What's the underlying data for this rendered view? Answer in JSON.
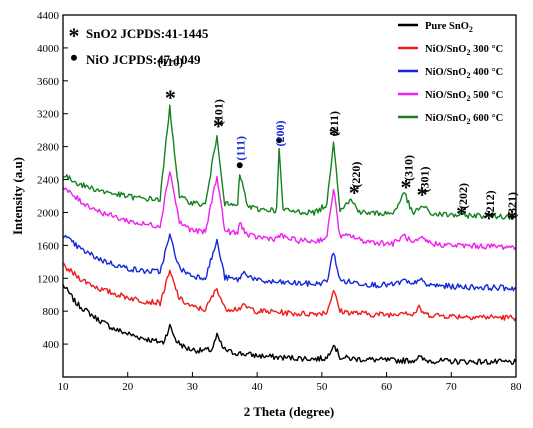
{
  "chart_data": {
    "type": "line",
    "title": "",
    "xlabel": "2 Theta (degree)",
    "ylabel": "Intensity (a.u)",
    "xlim": [
      10,
      80
    ],
    "ylim": [
      0,
      4400
    ],
    "xticks": [
      "10",
      "20",
      "30",
      "40",
      "50",
      "60",
      "70",
      "80"
    ],
    "yticks": [
      "400",
      "800",
      "1200",
      "1600",
      "2000",
      "2400",
      "2800",
      "3200",
      "3600",
      "4000",
      "4400"
    ],
    "legend_position": "top-right",
    "series": [
      {
        "name": "Pure SnO2",
        "color": "#000000",
        "points": [
          [
            10,
            1120
          ],
          [
            12,
            900
          ],
          [
            15,
            720
          ],
          [
            18,
            580
          ],
          [
            21,
            500
          ],
          [
            24,
            440
          ],
          [
            25.5,
            420
          ],
          [
            26.5,
            620
          ],
          [
            27.5,
            440
          ],
          [
            29,
            350
          ],
          [
            31,
            320
          ],
          [
            33,
            330
          ],
          [
            33.8,
            500
          ],
          [
            34.8,
            340
          ],
          [
            36,
            300
          ],
          [
            38,
            280
          ],
          [
            40,
            260
          ],
          [
            43,
            240
          ],
          [
            46,
            230
          ],
          [
            49,
            220
          ],
          [
            50.8,
            230
          ],
          [
            51.8,
            410
          ],
          [
            52.8,
            240
          ],
          [
            55,
            220
          ],
          [
            58,
            210
          ],
          [
            61,
            200
          ],
          [
            64,
            200
          ],
          [
            65,
            240
          ],
          [
            66,
            200
          ],
          [
            70,
            190
          ],
          [
            75,
            185
          ],
          [
            80,
            180
          ]
        ]
      },
      {
        "name": "NiO/SnO2 300 °C",
        "color": "#ee1c1c",
        "points": [
          [
            10,
            1350
          ],
          [
            13,
            1180
          ],
          [
            16,
            1060
          ],
          [
            19,
            990
          ],
          [
            22,
            930
          ],
          [
            25,
            900
          ],
          [
            26.5,
            1280
          ],
          [
            28,
            950
          ],
          [
            30,
            850
          ],
          [
            32,
            820
          ],
          [
            33.8,
            1080
          ],
          [
            35,
            830
          ],
          [
            37,
            830
          ],
          [
            38,
            860
          ],
          [
            40,
            800
          ],
          [
            43,
            790
          ],
          [
            46,
            770
          ],
          [
            49,
            770
          ],
          [
            50.8,
            790
          ],
          [
            51.8,
            1060
          ],
          [
            52.8,
            800
          ],
          [
            55,
            780
          ],
          [
            58,
            760
          ],
          [
            61,
            760
          ],
          [
            62.8,
            800
          ],
          [
            64,
            750
          ],
          [
            65,
            840
          ],
          [
            66,
            760
          ],
          [
            70,
            740
          ],
          [
            75,
            730
          ],
          [
            80,
            720
          ]
        ]
      },
      {
        "name": "NiO/SnO2 400 °C",
        "color": "#1428d8",
        "points": [
          [
            10,
            1720
          ],
          [
            13,
            1540
          ],
          [
            16,
            1420
          ],
          [
            19,
            1340
          ],
          [
            22,
            1290
          ],
          [
            25,
            1280
          ],
          [
            26.5,
            1720
          ],
          [
            28,
            1320
          ],
          [
            30,
            1230
          ],
          [
            32,
            1210
          ],
          [
            33.8,
            1650
          ],
          [
            35,
            1210
          ],
          [
            37,
            1180
          ],
          [
            38,
            1270
          ],
          [
            40,
            1170
          ],
          [
            43,
            1150
          ],
          [
            46,
            1140
          ],
          [
            49,
            1130
          ],
          [
            50.8,
            1160
          ],
          [
            51.8,
            1530
          ],
          [
            52.8,
            1170
          ],
          [
            55,
            1150
          ],
          [
            58,
            1120
          ],
          [
            61,
            1120
          ],
          [
            62.8,
            1170
          ],
          [
            64,
            1110
          ],
          [
            65,
            1200
          ],
          [
            66,
            1120
          ],
          [
            70,
            1100
          ],
          [
            75,
            1090
          ],
          [
            80,
            1080
          ]
        ]
      },
      {
        "name": "NiO/SnO2 500 °C",
        "color": "#ee22ee",
        "points": [
          [
            10,
            2300
          ],
          [
            13,
            2120
          ],
          [
            16,
            2000
          ],
          [
            19,
            1920
          ],
          [
            22,
            1860
          ],
          [
            25,
            1840
          ],
          [
            26.5,
            2520
          ],
          [
            28,
            1880
          ],
          [
            30,
            1780
          ],
          [
            32,
            1760
          ],
          [
            33.8,
            2450
          ],
          [
            35,
            1780
          ],
          [
            37,
            1740
          ],
          [
            37.3,
            1880
          ],
          [
            38.5,
            1720
          ],
          [
            40,
            1700
          ],
          [
            43,
            1680
          ],
          [
            43.3,
            1720
          ],
          [
            46,
            1660
          ],
          [
            49,
            1650
          ],
          [
            50.8,
            1700
          ],
          [
            51.8,
            2300
          ],
          [
            52.8,
            1700
          ],
          [
            54.5,
            1720
          ],
          [
            56,
            1660
          ],
          [
            58,
            1640
          ],
          [
            61,
            1620
          ],
          [
            62.8,
            1720
          ],
          [
            64,
            1620
          ],
          [
            65.5,
            1680
          ],
          [
            67,
            1620
          ],
          [
            70,
            1600
          ],
          [
            75,
            1590
          ],
          [
            80,
            1580
          ]
        ]
      },
      {
        "name": "NiO/SnO2 600 °C",
        "color": "#14821e",
        "points": [
          [
            10,
            2450
          ],
          [
            13,
            2330
          ],
          [
            16,
            2260
          ],
          [
            19,
            2210
          ],
          [
            22,
            2170
          ],
          [
            25,
            2160
          ],
          [
            26.5,
            3280
          ],
          [
            28,
            2180
          ],
          [
            30,
            2120
          ],
          [
            32,
            2090
          ],
          [
            33.8,
            2940
          ],
          [
            35,
            2100
          ],
          [
            37,
            2080
          ],
          [
            37.3,
            2480
          ],
          [
            38.5,
            2080
          ],
          [
            40,
            2040
          ],
          [
            43,
            2030
          ],
          [
            43.4,
            2780
          ],
          [
            44,
            2030
          ],
          [
            46,
            2010
          ],
          [
            49,
            2000
          ],
          [
            50.8,
            2100
          ],
          [
            51.8,
            2880
          ],
          [
            52.8,
            2040
          ],
          [
            54.5,
            2150
          ],
          [
            56,
            2000
          ],
          [
            58,
            1990
          ],
          [
            61,
            1990
          ],
          [
            62.8,
            2240
          ],
          [
            64,
            1980
          ],
          [
            65.5,
            2080
          ],
          [
            67,
            1980
          ],
          [
            70,
            1970
          ],
          [
            75,
            1960
          ],
          [
            80,
            1950
          ]
        ]
      }
    ],
    "annotations": [
      {
        "text": "(110)",
        "x": 26.6,
        "y": 3780,
        "color": "#000000"
      },
      {
        "text": "(101)",
        "x": 34.0,
        "y": 3220,
        "color": "#000000",
        "rotate": true
      },
      {
        "text": "(111)",
        "x": 37.4,
        "y": 2780,
        "color": "#1428d8",
        "rotate": true
      },
      {
        "text": "(200)",
        "x": 43.5,
        "y": 2960,
        "color": "#1428d8",
        "rotate": true
      },
      {
        "text": "(211)",
        "x": 51.9,
        "y": 3080,
        "color": "#000000",
        "rotate": true
      },
      {
        "text": "(220)",
        "x": 55.3,
        "y": 2460,
        "color": "#000000",
        "rotate": true
      },
      {
        "text": "(310)",
        "x": 63.4,
        "y": 2540,
        "color": "#000000",
        "rotate": true
      },
      {
        "text": "(301)",
        "x": 65.9,
        "y": 2400,
        "color": "#000000",
        "rotate": true
      },
      {
        "text": "(202)",
        "x": 71.8,
        "y": 2200,
        "color": "#000000",
        "rotate": true
      },
      {
        "text": "(212)",
        "x": 76.0,
        "y": 2110,
        "color": "#000000",
        "rotate": true
      },
      {
        "text": "(321)",
        "x": 79.4,
        "y": 2090,
        "color": "#000000",
        "rotate": true
      }
    ],
    "markers": [
      {
        "symbol": "*",
        "x": 26.6,
        "y": 3430
      },
      {
        "symbol": "*",
        "x": 34.0,
        "y": 3080
      },
      {
        "symbol": "•",
        "x": 37.3,
        "y": 2560
      },
      {
        "symbol": "•",
        "x": 43.4,
        "y": 2860
      },
      {
        "symbol": "*",
        "x": 51.9,
        "y": 2980
      },
      {
        "symbol": "*",
        "x": 55.0,
        "y": 2270
      },
      {
        "symbol": "*",
        "x": 63.0,
        "y": 2340
      },
      {
        "symbol": "*",
        "x": 65.5,
        "y": 2250
      },
      {
        "symbol": "*",
        "x": 71.6,
        "y": 2020
      },
      {
        "symbol": "*",
        "x": 75.8,
        "y": 1960
      },
      {
        "symbol": "*",
        "x": 79.4,
        "y": 1960
      }
    ],
    "jcpds": [
      {
        "symbol": "*",
        "text": "SnO2 JCPDS:41-1445"
      },
      {
        "symbol": "•",
        "text": "NiO JCPDS:47-1049"
      }
    ],
    "legend": [
      {
        "label": "Pure SnO",
        "sub": "2",
        "suffix": "",
        "color": "#000000"
      },
      {
        "label": "NiO/SnO",
        "sub": "2",
        "suffix": "  300 °C",
        "color": "#ee1c1c"
      },
      {
        "label": "NiO/SnO",
        "sub": "2",
        "suffix": " 400 °C",
        "color": "#1428d8"
      },
      {
        "label": "NiO/SnO",
        "sub": "2",
        "suffix": " 500 °C",
        "color": "#ee22ee"
      },
      {
        "label": "NiO/SnO",
        "sub": "2",
        "suffix": " 600 °C",
        "color": "#14821e"
      }
    ]
  }
}
